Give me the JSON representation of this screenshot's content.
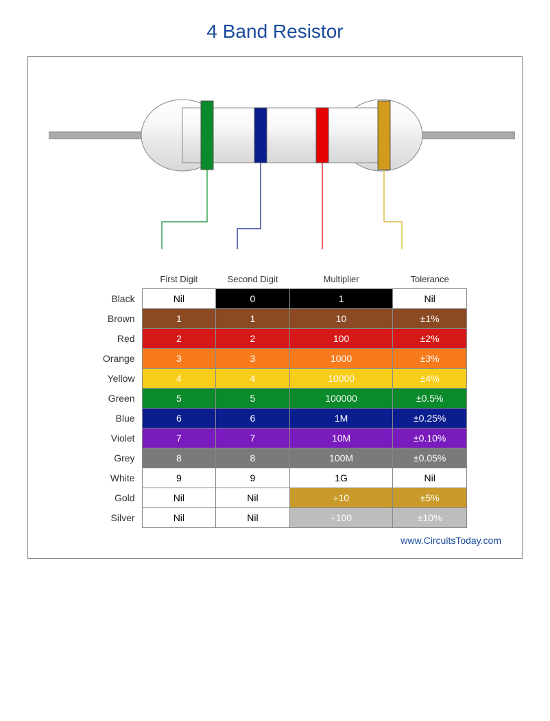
{
  "title": "4 Band Resistor",
  "footer": "www.CircuitsToday.com",
  "resistor": {
    "body_fill": "#f0f0f0",
    "body_stroke": "#888888",
    "wire_fill": "#aaaaaa",
    "wire_stroke": "#888888",
    "bands": [
      {
        "color": "#0a8a2a",
        "label": "First Digit",
        "line_color": "#0a8a2a"
      },
      {
        "color": "#0b1e8f",
        "label": "Second Digit",
        "line_color": "#0b1e8f"
      },
      {
        "color": "#e60000",
        "label": "Multiplier",
        "line_color": "#e60000"
      },
      {
        "color": "#d29b1e",
        "label": "Tolerance",
        "line_color": "#d4b020"
      }
    ]
  },
  "columns": [
    "First Digit",
    "Second Digit",
    "Multiplier",
    "Tolerance"
  ],
  "colors": {
    "white_bg": "#ffffff",
    "black_text": "#000000",
    "white_text": "#ffffff",
    "border": "#888888"
  },
  "rows": [
    {
      "name": "Black",
      "cells": [
        {
          "v": "Nil",
          "bg": "#ffffff",
          "fg": "#000000"
        },
        {
          "v": "0",
          "bg": "#000000",
          "fg": "#ffffff"
        },
        {
          "v": "1",
          "bg": "#000000",
          "fg": "#ffffff"
        },
        {
          "v": "Nil",
          "bg": "#ffffff",
          "fg": "#000000"
        }
      ]
    },
    {
      "name": "Brown",
      "cells": [
        {
          "v": "1",
          "bg": "#8b4a24",
          "fg": "#ffffff"
        },
        {
          "v": "1",
          "bg": "#8b4a24",
          "fg": "#ffffff"
        },
        {
          "v": "10",
          "bg": "#8b4a24",
          "fg": "#ffffff"
        },
        {
          "v": "±1%",
          "bg": "#8b4a24",
          "fg": "#ffffff"
        }
      ]
    },
    {
      "name": "Red",
      "cells": [
        {
          "v": "2",
          "bg": "#d61818",
          "fg": "#ffffff"
        },
        {
          "v": "2",
          "bg": "#d61818",
          "fg": "#ffffff"
        },
        {
          "v": "100",
          "bg": "#d61818",
          "fg": "#ffffff"
        },
        {
          "v": "±2%",
          "bg": "#d61818",
          "fg": "#ffffff"
        }
      ]
    },
    {
      "name": "Orange",
      "cells": [
        {
          "v": "3",
          "bg": "#f77b1c",
          "fg": "#ffffff"
        },
        {
          "v": "3",
          "bg": "#f77b1c",
          "fg": "#ffffff"
        },
        {
          "v": "1000",
          "bg": "#f77b1c",
          "fg": "#ffffff"
        },
        {
          "v": "±3%",
          "bg": "#f77b1c",
          "fg": "#ffffff"
        }
      ]
    },
    {
      "name": "Yellow",
      "cells": [
        {
          "v": "4",
          "bg": "#f8cd1a",
          "fg": "#ffffff"
        },
        {
          "v": "4",
          "bg": "#f8cd1a",
          "fg": "#ffffff"
        },
        {
          "v": "10000",
          "bg": "#f8cd1a",
          "fg": "#ffffff"
        },
        {
          "v": "±4%",
          "bg": "#f8cd1a",
          "fg": "#ffffff"
        }
      ]
    },
    {
      "name": "Green",
      "cells": [
        {
          "v": "5",
          "bg": "#0a8a2a",
          "fg": "#ffffff"
        },
        {
          "v": "5",
          "bg": "#0a8a2a",
          "fg": "#ffffff"
        },
        {
          "v": "100000",
          "bg": "#0a8a2a",
          "fg": "#ffffff"
        },
        {
          "v": "±0.5%",
          "bg": "#0a8a2a",
          "fg": "#ffffff"
        }
      ]
    },
    {
      "name": "Blue",
      "cells": [
        {
          "v": "6",
          "bg": "#0b1e8f",
          "fg": "#ffffff"
        },
        {
          "v": "6",
          "bg": "#0b1e8f",
          "fg": "#ffffff"
        },
        {
          "v": "1M",
          "bg": "#0b1e8f",
          "fg": "#ffffff"
        },
        {
          "v": "±0.25%",
          "bg": "#0b1e8f",
          "fg": "#ffffff"
        }
      ]
    },
    {
      "name": "Violet",
      "cells": [
        {
          "v": "7",
          "bg": "#7a1bbd",
          "fg": "#ffffff"
        },
        {
          "v": "7",
          "bg": "#7a1bbd",
          "fg": "#ffffff"
        },
        {
          "v": "10M",
          "bg": "#7a1bbd",
          "fg": "#ffffff"
        },
        {
          "v": "±0.10%",
          "bg": "#7a1bbd",
          "fg": "#ffffff"
        }
      ]
    },
    {
      "name": "Grey",
      "cells": [
        {
          "v": "8",
          "bg": "#7a7a7a",
          "fg": "#ffffff"
        },
        {
          "v": "8",
          "bg": "#7a7a7a",
          "fg": "#ffffff"
        },
        {
          "v": "100M",
          "bg": "#7a7a7a",
          "fg": "#ffffff"
        },
        {
          "v": "±0.05%",
          "bg": "#7a7a7a",
          "fg": "#ffffff"
        }
      ]
    },
    {
      "name": "White",
      "cells": [
        {
          "v": "9",
          "bg": "#ffffff",
          "fg": "#000000"
        },
        {
          "v": "9",
          "bg": "#ffffff",
          "fg": "#000000"
        },
        {
          "v": "1G",
          "bg": "#ffffff",
          "fg": "#000000"
        },
        {
          "v": "Nil",
          "bg": "#ffffff",
          "fg": "#000000"
        }
      ]
    },
    {
      "name": "Gold",
      "cells": [
        {
          "v": "Nil",
          "bg": "#ffffff",
          "fg": "#000000"
        },
        {
          "v": "Nil",
          "bg": "#ffffff",
          "fg": "#000000"
        },
        {
          "v": "÷10",
          "bg": "#c99a2a",
          "fg": "#ffffff"
        },
        {
          "v": "±5%",
          "bg": "#c99a2a",
          "fg": "#ffffff"
        }
      ]
    },
    {
      "name": "Silver",
      "cells": [
        {
          "v": "Nil",
          "bg": "#ffffff",
          "fg": "#000000"
        },
        {
          "v": "Nil",
          "bg": "#ffffff",
          "fg": "#000000"
        },
        {
          "v": "÷100",
          "bg": "#bdbdbd",
          "fg": "#ffffff"
        },
        {
          "v": "±10%",
          "bg": "#bdbdbd",
          "fg": "#ffffff"
        }
      ]
    }
  ]
}
